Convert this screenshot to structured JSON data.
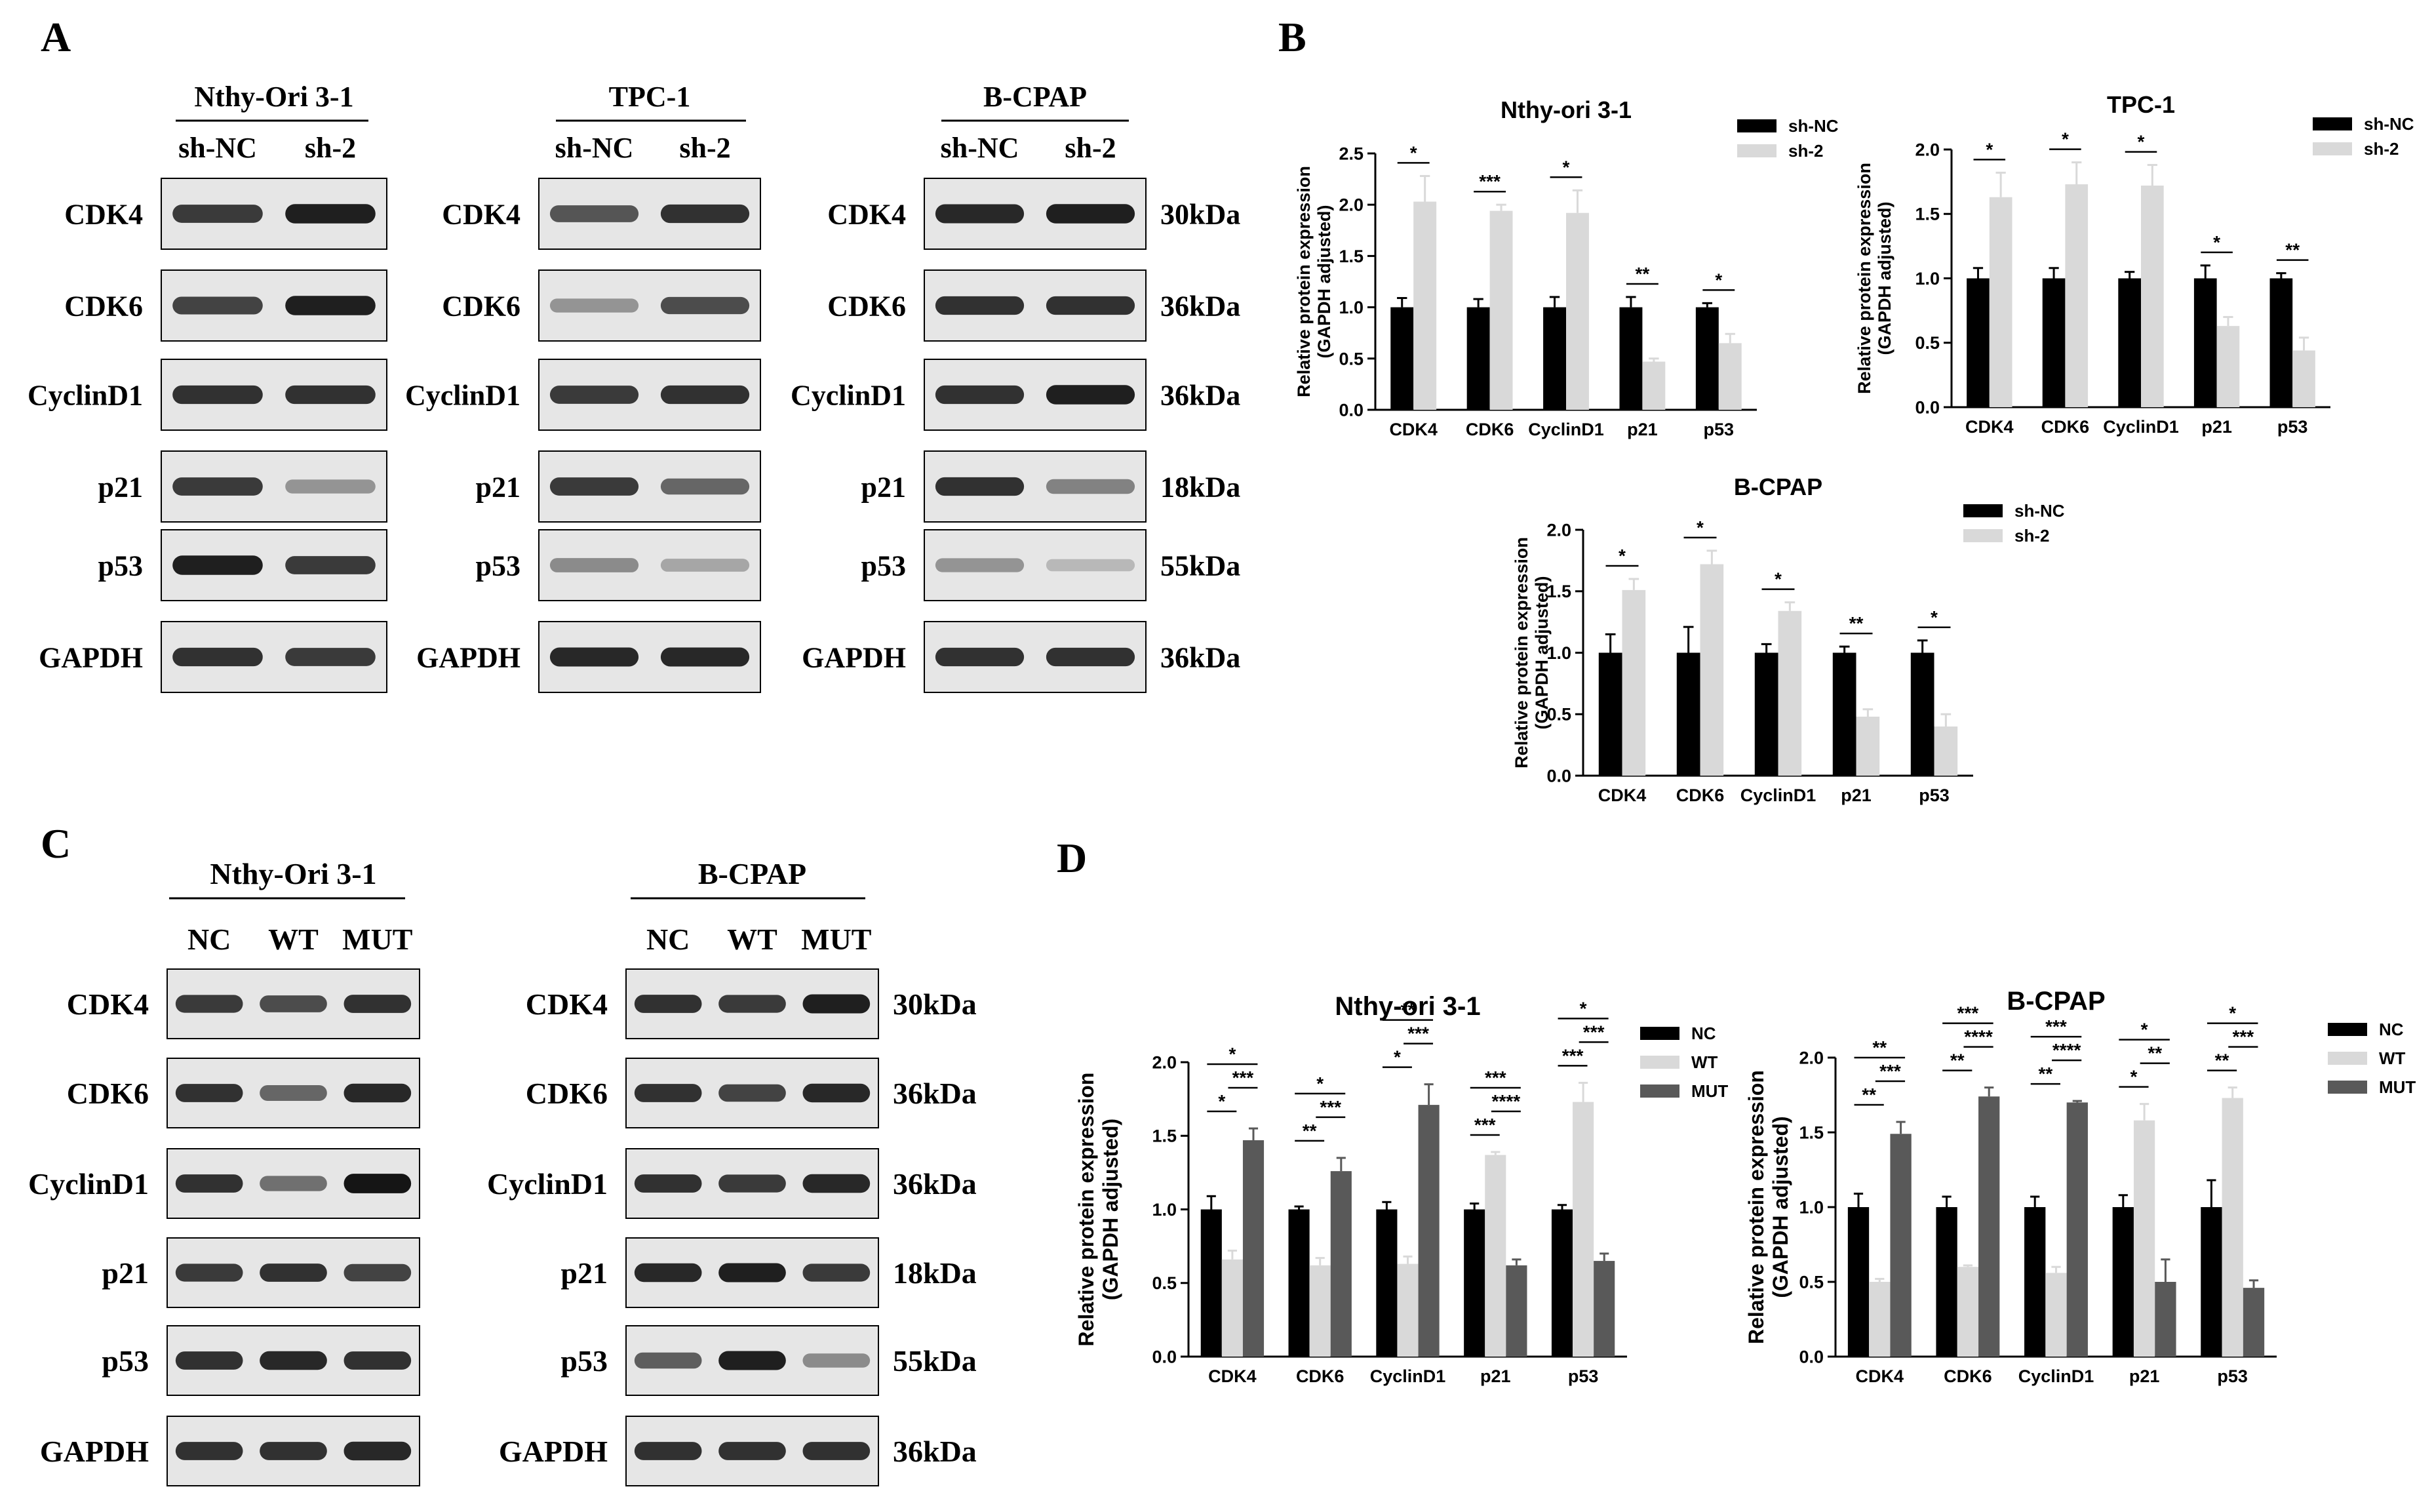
{
  "panel_letters": {
    "A": "A",
    "B": "B",
    "C": "C",
    "D": "D"
  },
  "blots_A": [
    {
      "title": "Nthy-Ori 3-1",
      "lanes": [
        "sh-NC",
        "sh-2"
      ],
      "rows": [
        {
          "label": "CDK4",
          "intensity": [
            0.8,
            0.95
          ]
        },
        {
          "label": "CDK6",
          "intensity": [
            0.75,
            0.95
          ]
        },
        {
          "label": "CyclinD1",
          "intensity": [
            0.85,
            0.85
          ]
        },
        {
          "label": "p21",
          "intensity": [
            0.8,
            0.3
          ]
        },
        {
          "label": "p53",
          "intensity": [
            0.95,
            0.8
          ]
        },
        {
          "label": "GAPDH",
          "intensity": [
            0.85,
            0.8
          ]
        }
      ]
    },
    {
      "title": "TPC-1",
      "lanes": [
        "sh-NC",
        "sh-2"
      ],
      "rows": [
        {
          "label": "CDK4",
          "intensity": [
            0.65,
            0.85
          ]
        },
        {
          "label": "CDK6",
          "intensity": [
            0.3,
            0.7
          ]
        },
        {
          "label": "CyclinD1",
          "intensity": [
            0.8,
            0.85
          ]
        },
        {
          "label": "p21",
          "intensity": [
            0.8,
            0.55
          ]
        },
        {
          "label": "p53",
          "intensity": [
            0.35,
            0.2
          ]
        },
        {
          "label": "GAPDH",
          "intensity": [
            0.9,
            0.9
          ]
        }
      ]
    },
    {
      "title": "B-CPAP",
      "lanes": [
        "sh-NC",
        "sh-2"
      ],
      "rows": [
        {
          "label": "CDK4",
          "intensity": [
            0.9,
            0.95
          ],
          "kda": "30kDa"
        },
        {
          "label": "CDK6",
          "intensity": [
            0.85,
            0.85
          ],
          "kda": "36kDa"
        },
        {
          "label": "CyclinD1",
          "intensity": [
            0.85,
            0.95
          ],
          "kda": "36kDa"
        },
        {
          "label": "p21",
          "intensity": [
            0.85,
            0.4
          ],
          "kda": "18kDa"
        },
        {
          "label": "p53",
          "intensity": [
            0.3,
            0.1
          ],
          "kda": "55kDa"
        },
        {
          "label": "GAPDH",
          "intensity": [
            0.85,
            0.85
          ],
          "kda": "36kDa"
        }
      ]
    }
  ],
  "blots_C": [
    {
      "title": "Nthy-Ori 3-1",
      "lanes": [
        "NC",
        "WT",
        "MUT"
      ],
      "rows": [
        {
          "label": "CDK4",
          "intensity": [
            0.8,
            0.7,
            0.85
          ]
        },
        {
          "label": "CDK6",
          "intensity": [
            0.85,
            0.55,
            0.9
          ]
        },
        {
          "label": "CyclinD1",
          "intensity": [
            0.85,
            0.5,
            1.0
          ]
        },
        {
          "label": "p21",
          "intensity": [
            0.8,
            0.85,
            0.75
          ]
        },
        {
          "label": "p53",
          "intensity": [
            0.85,
            0.9,
            0.85
          ]
        },
        {
          "label": "GAPDH",
          "intensity": [
            0.85,
            0.85,
            0.9
          ]
        }
      ]
    },
    {
      "title": "B-CPAP",
      "lanes": [
        "NC",
        "WT",
        "MUT"
      ],
      "rows": [
        {
          "label": "CDK4",
          "intensity": [
            0.85,
            0.8,
            0.95
          ],
          "kda": "30kDa"
        },
        {
          "label": "CDK6",
          "intensity": [
            0.85,
            0.75,
            0.9
          ],
          "kda": "36kDa"
        },
        {
          "label": "CyclinD1",
          "intensity": [
            0.85,
            0.8,
            0.9
          ],
          "kda": "36kDa"
        },
        {
          "label": "p21",
          "intensity": [
            0.9,
            0.95,
            0.8
          ],
          "kda": "18kDa"
        },
        {
          "label": "p53",
          "intensity": [
            0.6,
            0.95,
            0.35
          ],
          "kda": "55kDa"
        },
        {
          "label": "GAPDH",
          "intensity": [
            0.85,
            0.85,
            0.85
          ],
          "kda": "36kDa"
        }
      ]
    }
  ],
  "chart_data": [
    {
      "type": "bar",
      "title": "Nthy-ori 3-1",
      "categories": [
        "CDK4",
        "CDK6",
        "CyclinD1",
        "p21",
        "p53"
      ],
      "ylabel": [
        "Relative protein expression",
        "(GAPDH adjusted)"
      ],
      "ylim": [
        0,
        2.5
      ],
      "yticks": [
        "0.0",
        "0.5",
        "1.0",
        "1.5",
        "2.0",
        "2.5"
      ],
      "legend_position": "top-right",
      "series": [
        {
          "name": "sh-NC",
          "color": "#000000",
          "values": [
            1.0,
            1.0,
            1.0,
            1.0,
            1.0
          ],
          "errors": [
            0.09,
            0.08,
            0.1,
            0.1,
            0.04
          ]
        },
        {
          "name": "sh-2",
          "color": "#d9d9d9",
          "values": [
            2.03,
            1.94,
            1.92,
            0.47,
            0.65
          ],
          "errors": [
            0.25,
            0.06,
            0.22,
            0.03,
            0.09
          ]
        }
      ],
      "significance": [
        {
          "pairs": [
            0,
            1
          ],
          "cat": 0,
          "label": "*"
        },
        {
          "pairs": [
            0,
            1
          ],
          "cat": 1,
          "label": "***"
        },
        {
          "pairs": [
            0,
            1
          ],
          "cat": 2,
          "label": "*"
        },
        {
          "pairs": [
            0,
            1
          ],
          "cat": 3,
          "label": "**"
        },
        {
          "pairs": [
            0,
            1
          ],
          "cat": 4,
          "label": "*"
        }
      ]
    },
    {
      "type": "bar",
      "title": "TPC-1",
      "categories": [
        "CDK4",
        "CDK6",
        "CyclinD1",
        "p21",
        "p53"
      ],
      "ylabel": [
        "Relative protein expression",
        "(GAPDH adjusted)"
      ],
      "ylim": [
        0,
        2.0
      ],
      "yticks": [
        "0.0",
        "0.5",
        "1.0",
        "1.5",
        "2.0"
      ],
      "legend_position": "top-right",
      "series": [
        {
          "name": "sh-NC",
          "color": "#000000",
          "values": [
            1.0,
            1.0,
            1.0,
            1.0,
            1.0
          ],
          "errors": [
            0.08,
            0.08,
            0.05,
            0.1,
            0.04
          ]
        },
        {
          "name": "sh-2",
          "color": "#d9d9d9",
          "values": [
            1.63,
            1.73,
            1.72,
            0.63,
            0.44
          ],
          "errors": [
            0.19,
            0.17,
            0.16,
            0.07,
            0.1
          ]
        }
      ],
      "significance": [
        {
          "pairs": [
            0,
            1
          ],
          "cat": 0,
          "label": "*"
        },
        {
          "pairs": [
            0,
            1
          ],
          "cat": 1,
          "label": "*"
        },
        {
          "pairs": [
            0,
            1
          ],
          "cat": 2,
          "label": "*"
        },
        {
          "pairs": [
            0,
            1
          ],
          "cat": 3,
          "label": "*"
        },
        {
          "pairs": [
            0,
            1
          ],
          "cat": 4,
          "label": "**"
        }
      ]
    },
    {
      "type": "bar",
      "title": "B-CPAP",
      "categories": [
        "CDK4",
        "CDK6",
        "CyclinD1",
        "p21",
        "p53"
      ],
      "ylabel": [
        "Relative protein expression",
        "(GAPDH adjusted)"
      ],
      "ylim": [
        0,
        2.0
      ],
      "yticks": [
        "0.0",
        "0.5",
        "1.0",
        "1.5",
        "2.0"
      ],
      "legend_position": "top-right",
      "series": [
        {
          "name": "sh-NC",
          "color": "#000000",
          "values": [
            1.0,
            1.0,
            1.0,
            1.0,
            1.0
          ],
          "errors": [
            0.15,
            0.21,
            0.07,
            0.05,
            0.1
          ]
        },
        {
          "name": "sh-2",
          "color": "#d9d9d9",
          "values": [
            1.51,
            1.72,
            1.34,
            0.48,
            0.4
          ],
          "errors": [
            0.09,
            0.11,
            0.07,
            0.06,
            0.1
          ]
        }
      ],
      "significance": [
        {
          "pairs": [
            0,
            1
          ],
          "cat": 0,
          "label": "*"
        },
        {
          "pairs": [
            0,
            1
          ],
          "cat": 1,
          "label": "*"
        },
        {
          "pairs": [
            0,
            1
          ],
          "cat": 2,
          "label": "*"
        },
        {
          "pairs": [
            0,
            1
          ],
          "cat": 3,
          "label": "**"
        },
        {
          "pairs": [
            0,
            1
          ],
          "cat": 4,
          "label": "*"
        }
      ]
    },
    {
      "type": "bar",
      "title": "Nthy-ori 3-1",
      "categories": [
        "CDK4",
        "CDK6",
        "CyclinD1",
        "p21",
        "p53"
      ],
      "ylabel": [
        "Relative protein expression",
        "(GAPDH adjusted)"
      ],
      "ylim": [
        0,
        2.0
      ],
      "yticks": [
        "0.0",
        "0.5",
        "1.0",
        "1.5",
        "2.0"
      ],
      "legend_position": "top-right",
      "series": [
        {
          "name": "NC",
          "color": "#000000",
          "values": [
            1.0,
            1.0,
            1.0,
            1.0,
            1.0
          ],
          "errors": [
            0.09,
            0.02,
            0.05,
            0.04,
            0.03
          ]
        },
        {
          "name": "WT",
          "color": "#d9d9d9",
          "values": [
            0.66,
            0.62,
            0.63,
            1.37,
            1.73
          ],
          "errors": [
            0.06,
            0.05,
            0.05,
            0.02,
            0.13
          ]
        },
        {
          "name": "MUT",
          "color": "#595959",
          "values": [
            1.47,
            1.26,
            1.71,
            0.62,
            0.65
          ],
          "errors": [
            0.08,
            0.09,
            0.14,
            0.04,
            0.05
          ]
        }
      ],
      "significance": [
        {
          "pairs": [
            0,
            1
          ],
          "cat": 0,
          "label": "*"
        },
        {
          "pairs": [
            1,
            2
          ],
          "cat": 0,
          "label": "***"
        },
        {
          "pairs": [
            0,
            2
          ],
          "cat": 0,
          "label": "*"
        },
        {
          "pairs": [
            0,
            1
          ],
          "cat": 1,
          "label": "**"
        },
        {
          "pairs": [
            1,
            2
          ],
          "cat": 1,
          "label": "***"
        },
        {
          "pairs": [
            0,
            2
          ],
          "cat": 1,
          "label": "*"
        },
        {
          "pairs": [
            0,
            1
          ],
          "cat": 2,
          "label": "*"
        },
        {
          "pairs": [
            1,
            2
          ],
          "cat": 2,
          "label": "***"
        },
        {
          "pairs": [
            0,
            2
          ],
          "cat": 2,
          "label": "**"
        },
        {
          "pairs": [
            0,
            1
          ],
          "cat": 3,
          "label": "***"
        },
        {
          "pairs": [
            1,
            2
          ],
          "cat": 3,
          "label": "****"
        },
        {
          "pairs": [
            0,
            2
          ],
          "cat": 3,
          "label": "***"
        },
        {
          "pairs": [
            0,
            1
          ],
          "cat": 4,
          "label": "***"
        },
        {
          "pairs": [
            1,
            2
          ],
          "cat": 4,
          "label": "***"
        },
        {
          "pairs": [
            0,
            2
          ],
          "cat": 4,
          "label": "*"
        }
      ]
    },
    {
      "type": "bar",
      "title": "B-CPAP",
      "categories": [
        "CDK4",
        "CDK6",
        "CyclinD1",
        "p21",
        "p53"
      ],
      "ylabel": [
        "Relative protein expression",
        "(GAPDH adjusted)"
      ],
      "ylim": [
        0,
        2.0
      ],
      "yticks": [
        "0.0",
        "0.5",
        "1.0",
        "1.5",
        "2.0"
      ],
      "legend_position": "top-right",
      "series": [
        {
          "name": "NC",
          "color": "#000000",
          "values": [
            1.0,
            1.0,
            1.0,
            1.0,
            1.0
          ],
          "errors": [
            0.09,
            0.07,
            0.07,
            0.08,
            0.18
          ]
        },
        {
          "name": "WT",
          "color": "#d9d9d9",
          "values": [
            0.5,
            0.6,
            0.56,
            1.58,
            1.73
          ],
          "errors": [
            0.02,
            0.01,
            0.04,
            0.11,
            0.07
          ]
        },
        {
          "name": "MUT",
          "color": "#595959",
          "values": [
            1.49,
            1.74,
            1.7,
            0.5,
            0.46
          ],
          "errors": [
            0.08,
            0.06,
            0.01,
            0.15,
            0.05
          ]
        }
      ],
      "significance": [
        {
          "pairs": [
            0,
            1
          ],
          "cat": 0,
          "label": "**"
        },
        {
          "pairs": [
            1,
            2
          ],
          "cat": 0,
          "label": "***"
        },
        {
          "pairs": [
            0,
            2
          ],
          "cat": 0,
          "label": "**"
        },
        {
          "pairs": [
            0,
            1
          ],
          "cat": 1,
          "label": "**"
        },
        {
          "pairs": [
            1,
            2
          ],
          "cat": 1,
          "label": "****"
        },
        {
          "pairs": [
            0,
            2
          ],
          "cat": 1,
          "label": "***"
        },
        {
          "pairs": [
            0,
            1
          ],
          "cat": 2,
          "label": "**"
        },
        {
          "pairs": [
            1,
            2
          ],
          "cat": 2,
          "label": "****"
        },
        {
          "pairs": [
            0,
            2
          ],
          "cat": 2,
          "label": "***"
        },
        {
          "pairs": [
            0,
            1
          ],
          "cat": 3,
          "label": "*"
        },
        {
          "pairs": [
            1,
            2
          ],
          "cat": 3,
          "label": "**"
        },
        {
          "pairs": [
            0,
            2
          ],
          "cat": 3,
          "label": "*"
        },
        {
          "pairs": [
            0,
            1
          ],
          "cat": 4,
          "label": "**"
        },
        {
          "pairs": [
            1,
            2
          ],
          "cat": 4,
          "label": "***"
        },
        {
          "pairs": [
            0,
            2
          ],
          "cat": 4,
          "label": "*"
        }
      ]
    }
  ]
}
